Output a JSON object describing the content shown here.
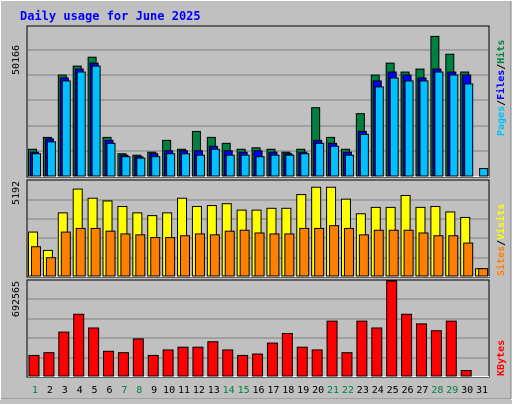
{
  "colors": {
    "background": "#c0c0c0",
    "title": "#0000ff",
    "hits": "#008040",
    "files": "#0000ff",
    "pages": "#00c0ff",
    "visits": "#ffff00",
    "sites": "#ff8000",
    "kbytes": "#ff0000",
    "weekend_label": "#008040",
    "weekday_label": "#000000"
  },
  "chart_data": [
    {
      "type": "bar",
      "title": "Daily usage for June 2025",
      "panel": "hits-files-pages",
      "ylabel_max": "50166",
      "ylim": [
        0,
        50166
      ],
      "legend": [
        "Pages",
        "Files",
        "Hits"
      ],
      "x": [
        "1",
        "2",
        "3",
        "4",
        "5",
        "6",
        "7",
        "8",
        "9",
        "10",
        "11",
        "12",
        "13",
        "14",
        "15",
        "16",
        "17",
        "18",
        "19",
        "20",
        "21",
        "22",
        "23",
        "24",
        "25",
        "26",
        "27",
        "28",
        "29",
        "30",
        "31"
      ],
      "weekend_days": [
        "1",
        "7",
        "8",
        "14",
        "15",
        "21",
        "22",
        "28",
        "29"
      ],
      "series": [
        {
          "name": "Hits",
          "values": [
            9000,
            13000,
            34000,
            37000,
            40000,
            13000,
            7500,
            7000,
            8000,
            12000,
            9000,
            15000,
            13000,
            11000,
            9000,
            9500,
            9000,
            8000,
            9000,
            23000,
            13000,
            9000,
            21000,
            34000,
            38000,
            35000,
            36000,
            47000,
            41000,
            35000,
            0
          ]
        },
        {
          "name": "Files",
          "values": [
            8000,
            12500,
            33000,
            36000,
            38000,
            12000,
            7000,
            6500,
            7500,
            8500,
            8500,
            8500,
            10000,
            8500,
            8000,
            8500,
            8000,
            7500,
            8000,
            12000,
            11000,
            8000,
            15000,
            32000,
            35000,
            34000,
            33000,
            36000,
            35000,
            34000,
            0
          ]
        },
        {
          "name": "Pages",
          "values": [
            7500,
            11500,
            32000,
            35000,
            37000,
            11000,
            6500,
            6000,
            6500,
            7500,
            7500,
            7000,
            9000,
            7000,
            7000,
            6500,
            7000,
            7000,
            7500,
            11000,
            10000,
            7000,
            14000,
            30000,
            33000,
            32000,
            32000,
            35000,
            34000,
            31000,
            2500
          ]
        }
      ]
    },
    {
      "type": "bar",
      "panel": "visits-sites",
      "ylabel_max": "5192",
      "ylim": [
        0,
        5192
      ],
      "legend": [
        "Sites",
        "Visits"
      ],
      "series": [
        {
          "name": "Visits",
          "values": [
            2400,
            1400,
            3450,
            4750,
            4250,
            4100,
            3800,
            3450,
            3300,
            3450,
            4250,
            3800,
            3850,
            3950,
            3600,
            3600,
            3700,
            3700,
            4450,
            4850,
            4850,
            4200,
            3400,
            3750,
            3750,
            4400,
            3750,
            3800,
            3500,
            3200,
            400
          ]
        },
        {
          "name": "Sites",
          "values": [
            1600,
            1000,
            2400,
            2600,
            2600,
            2450,
            2300,
            2250,
            2100,
            2100,
            2200,
            2300,
            2250,
            2450,
            2500,
            2350,
            2300,
            2300,
            2600,
            2600,
            2750,
            2600,
            2250,
            2500,
            2500,
            2500,
            2350,
            2200,
            2200,
            1800,
            400
          ]
        }
      ]
    },
    {
      "type": "bar",
      "panel": "kbytes",
      "ylabel_max": "692565",
      "ylim": [
        0,
        692565
      ],
      "legend": [
        "KBytes"
      ],
      "series": [
        {
          "name": "KBytes",
          "values": [
            150000,
            170000,
            320000,
            450000,
            350000,
            180000,
            170000,
            270000,
            150000,
            190000,
            210000,
            210000,
            250000,
            190000,
            150000,
            160000,
            240000,
            310000,
            210000,
            190000,
            400000,
            170000,
            400000,
            350000,
            692565,
            450000,
            380000,
            330000,
            400000,
            40000,
            0
          ]
        }
      ]
    }
  ]
}
